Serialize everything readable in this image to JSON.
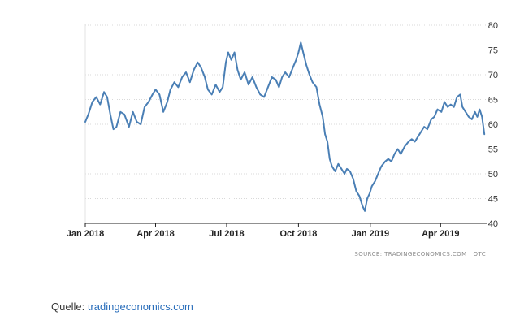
{
  "chart_data": {
    "type": "line",
    "title": "",
    "xlabel": "",
    "ylabel": "",
    "ylim": [
      40,
      80
    ],
    "y_ticks": [
      "40",
      "45",
      "50",
      "55",
      "60",
      "65",
      "70",
      "75",
      "80"
    ],
    "y_axis_side": "right",
    "x_ticks": [
      {
        "label": "Jan 2018",
        "date": "2018-01-01"
      },
      {
        "label": "Apr 2018",
        "date": "2018-04-01"
      },
      {
        "label": "Jul 2018",
        "date": "2018-07-01"
      },
      {
        "label": "Oct 2018",
        "date": "2018-10-01"
      },
      {
        "label": "Jan 2019",
        "date": "2019-01-01"
      },
      {
        "label": "Apr 2019",
        "date": "2019-04-01"
      }
    ],
    "xlim": [
      "2018-01-01",
      "2019-05-31"
    ],
    "grid": "horizontal dotted",
    "line_color": "#4a7fb5",
    "series": [
      {
        "points": [
          [
            "2018-01-01",
            60.5
          ],
          [
            "2018-01-05",
            62.0
          ],
          [
            "2018-01-10",
            64.5
          ],
          [
            "2018-01-15",
            65.5
          ],
          [
            "2018-01-20",
            64.0
          ],
          [
            "2018-01-25",
            66.5
          ],
          [
            "2018-01-29",
            65.5
          ],
          [
            "2018-02-02",
            62.0
          ],
          [
            "2018-02-06",
            59.0
          ],
          [
            "2018-02-10",
            59.5
          ],
          [
            "2018-02-15",
            62.5
          ],
          [
            "2018-02-20",
            62.0
          ],
          [
            "2018-02-26",
            59.5
          ],
          [
            "2018-03-03",
            62.5
          ],
          [
            "2018-03-08",
            60.5
          ],
          [
            "2018-03-13",
            60.0
          ],
          [
            "2018-03-18",
            63.5
          ],
          [
            "2018-03-23",
            64.5
          ],
          [
            "2018-03-28",
            66.0
          ],
          [
            "2018-04-01",
            67.0
          ],
          [
            "2018-04-06",
            66.0
          ],
          [
            "2018-04-11",
            62.5
          ],
          [
            "2018-04-16",
            64.5
          ],
          [
            "2018-04-20",
            67.0
          ],
          [
            "2018-04-25",
            68.5
          ],
          [
            "2018-04-30",
            67.5
          ],
          [
            "2018-05-05",
            69.5
          ],
          [
            "2018-05-10",
            70.5
          ],
          [
            "2018-05-15",
            68.5
          ],
          [
            "2018-05-20",
            71.0
          ],
          [
            "2018-05-25",
            72.5
          ],
          [
            "2018-05-29",
            71.5
          ],
          [
            "2018-06-03",
            69.5
          ],
          [
            "2018-06-07",
            67.0
          ],
          [
            "2018-06-12",
            66.0
          ],
          [
            "2018-06-17",
            68.0
          ],
          [
            "2018-06-22",
            66.5
          ],
          [
            "2018-06-26",
            67.5
          ],
          [
            "2018-06-30",
            72.5
          ],
          [
            "2018-07-03",
            74.5
          ],
          [
            "2018-07-07",
            73.0
          ],
          [
            "2018-07-11",
            74.5
          ],
          [
            "2018-07-15",
            71.0
          ],
          [
            "2018-07-19",
            69.0
          ],
          [
            "2018-07-24",
            70.5
          ],
          [
            "2018-07-29",
            68.0
          ],
          [
            "2018-08-03",
            69.5
          ],
          [
            "2018-08-08",
            67.5
          ],
          [
            "2018-08-13",
            66.0
          ],
          [
            "2018-08-18",
            65.5
          ],
          [
            "2018-08-23",
            67.5
          ],
          [
            "2018-08-28",
            69.5
          ],
          [
            "2018-09-02",
            69.0
          ],
          [
            "2018-09-06",
            67.5
          ],
          [
            "2018-09-10",
            69.5
          ],
          [
            "2018-09-14",
            70.5
          ],
          [
            "2018-09-19",
            69.5
          ],
          [
            "2018-09-24",
            71.5
          ],
          [
            "2018-09-28",
            73.0
          ],
          [
            "2018-10-01",
            74.5
          ],
          [
            "2018-10-04",
            76.5
          ],
          [
            "2018-10-07",
            74.5
          ],
          [
            "2018-10-11",
            72.0
          ],
          [
            "2018-10-15",
            70.0
          ],
          [
            "2018-10-19",
            68.5
          ],
          [
            "2018-10-24",
            67.5
          ],
          [
            "2018-10-28",
            64.0
          ],
          [
            "2018-11-01",
            61.5
          ],
          [
            "2018-11-04",
            58.0
          ],
          [
            "2018-11-07",
            56.5
          ],
          [
            "2018-11-10",
            53.0
          ],
          [
            "2018-11-13",
            51.5
          ],
          [
            "2018-11-17",
            50.5
          ],
          [
            "2018-11-21",
            52.0
          ],
          [
            "2018-11-25",
            51.0
          ],
          [
            "2018-11-29",
            50.0
          ],
          [
            "2018-12-02",
            51.0
          ],
          [
            "2018-12-06",
            50.5
          ],
          [
            "2018-12-10",
            49.0
          ],
          [
            "2018-12-14",
            46.5
          ],
          [
            "2018-12-18",
            45.5
          ],
          [
            "2018-12-22",
            43.5
          ],
          [
            "2018-12-25",
            42.5
          ],
          [
            "2018-12-28",
            45.0
          ],
          [
            "2018-12-31",
            46.0
          ],
          [
            "2019-01-03",
            47.5
          ],
          [
            "2019-01-07",
            48.5
          ],
          [
            "2019-01-11",
            50.0
          ],
          [
            "2019-01-15",
            51.5
          ],
          [
            "2019-01-20",
            52.5
          ],
          [
            "2019-01-24",
            53.0
          ],
          [
            "2019-01-28",
            52.5
          ],
          [
            "2019-02-01",
            54.0
          ],
          [
            "2019-02-05",
            55.0
          ],
          [
            "2019-02-09",
            54.0
          ],
          [
            "2019-02-14",
            55.5
          ],
          [
            "2019-02-19",
            56.5
          ],
          [
            "2019-02-23",
            57.0
          ],
          [
            "2019-02-27",
            56.5
          ],
          [
            "2019-03-03",
            57.5
          ],
          [
            "2019-03-07",
            58.5
          ],
          [
            "2019-03-11",
            59.5
          ],
          [
            "2019-03-15",
            59.0
          ],
          [
            "2019-03-20",
            61.0
          ],
          [
            "2019-03-24",
            61.5
          ],
          [
            "2019-03-28",
            63.0
          ],
          [
            "2019-04-02",
            62.5
          ],
          [
            "2019-04-06",
            64.5
          ],
          [
            "2019-04-10",
            63.5
          ],
          [
            "2019-04-14",
            64.0
          ],
          [
            "2019-04-18",
            63.5
          ],
          [
            "2019-04-22",
            65.5
          ],
          [
            "2019-04-26",
            66.0
          ],
          [
            "2019-04-29",
            63.5
          ],
          [
            "2019-05-03",
            62.5
          ],
          [
            "2019-05-07",
            61.5
          ],
          [
            "2019-05-11",
            61.0
          ],
          [
            "2019-05-15",
            62.5
          ],
          [
            "2019-05-18",
            61.5
          ],
          [
            "2019-05-21",
            63.0
          ],
          [
            "2019-05-24",
            61.5
          ],
          [
            "2019-05-27",
            58.0
          ]
        ]
      }
    ]
  },
  "source_label": "SOURCE: TRADINGECONOMICS.COM | OTC",
  "caption": {
    "prefix": "Quelle: ",
    "link_text": "tradingeconomics.com"
  }
}
